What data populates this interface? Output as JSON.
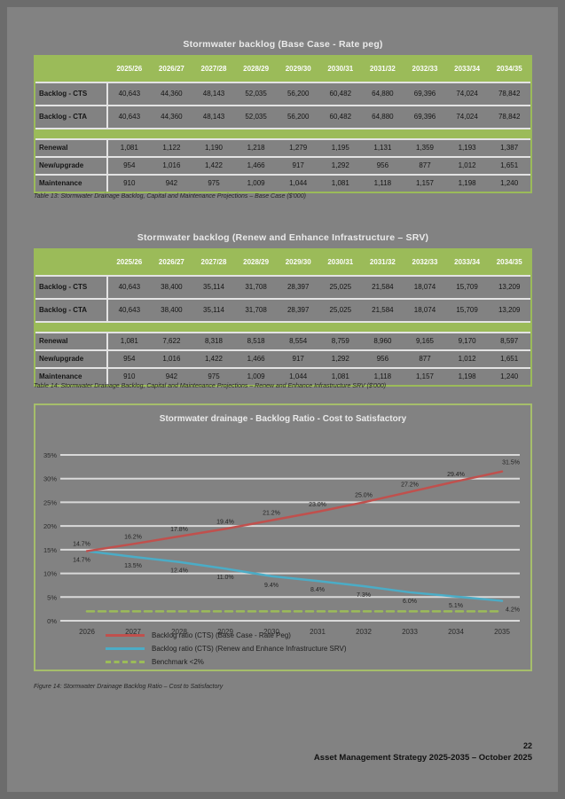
{
  "page": {
    "number": "22",
    "footer_text": "Asset Management Strategy 2025-2035 – October 2025"
  },
  "colors": {
    "accent_green": "#9BBB59",
    "page_background": "#828282",
    "base_case_line": "#C0504D",
    "srv_line": "#4BACC6",
    "benchmark_line": "#9BBB59",
    "gridline": "#D9D9D9"
  },
  "years": [
    "2025/26",
    "2026/27",
    "2027/28",
    "2028/29",
    "2029/30",
    "2030/31",
    "2031/32",
    "2032/33",
    "2033/34",
    "2034/35"
  ],
  "table1": {
    "title": "Stormwater backlog (Base Case - Rate peg)",
    "caption": "Table 13: Stormwater Drainage Backlog, Capital and Maintenance Projections – Base Case ($'000)",
    "backlog_rows": [
      {
        "label": "Backlog - CTS",
        "values": [
          "40,643",
          "44,360",
          "48,143",
          "52,035",
          "56,200",
          "60,482",
          "64,880",
          "69,396",
          "74,024",
          "78,842"
        ]
      },
      {
        "label": "Backlog - CTA",
        "values": [
          "40,643",
          "44,360",
          "48,143",
          "52,035",
          "56,200",
          "60,482",
          "64,880",
          "69,396",
          "74,024",
          "78,842"
        ]
      }
    ],
    "capex_rows": [
      {
        "label": "Renewal",
        "values": [
          "1,081",
          "1,122",
          "1,190",
          "1,218",
          "1,279",
          "1,195",
          "1,131",
          "1,359",
          "1,193",
          "1,387"
        ]
      },
      {
        "label": "New/upgrade",
        "values": [
          "954",
          "1,016",
          "1,422",
          "1,466",
          "917",
          "1,292",
          "956",
          "877",
          "1,012",
          "1,651"
        ]
      },
      {
        "label": "Maintenance",
        "values": [
          "910",
          "942",
          "975",
          "1,009",
          "1,044",
          "1,081",
          "1,118",
          "1,157",
          "1,198",
          "1,240"
        ]
      }
    ]
  },
  "table2": {
    "title": "Stormwater backlog (Renew and Enhance Infrastructure – SRV)",
    "caption": "Table 14: Stormwater Drainage Backlog, Capital and Maintenance Projections – Renew and Enhance Infrastructure SRV ($'000)",
    "backlog_rows": [
      {
        "label": "Backlog - CTS",
        "values": [
          "40,643",
          "38,400",
          "35,114",
          "31,708",
          "28,397",
          "25,025",
          "21,584",
          "18,074",
          "15,709",
          "13,209"
        ]
      },
      {
        "label": "Backlog - CTA",
        "values": [
          "40,643",
          "38,400",
          "35,114",
          "31,708",
          "28,397",
          "25,025",
          "21,584",
          "18,074",
          "15,709",
          "13,209"
        ]
      }
    ],
    "capex_rows": [
      {
        "label": "Renewal",
        "values": [
          "1,081",
          "7,622",
          "8,318",
          "8,518",
          "8,554",
          "8,759",
          "8,960",
          "9,165",
          "9,170",
          "8,597"
        ]
      },
      {
        "label": "New/upgrade",
        "values": [
          "954",
          "1,016",
          "1,422",
          "1,466",
          "917",
          "1,292",
          "956",
          "877",
          "1,012",
          "1,651"
        ]
      },
      {
        "label": "Maintenance",
        "values": [
          "910",
          "942",
          "975",
          "1,009",
          "1,044",
          "1,081",
          "1,118",
          "1,157",
          "1,198",
          "1,240"
        ]
      }
    ]
  },
  "chart_data": {
    "type": "line",
    "title": "Stormwater drainage - Backlog Ratio - Cost to Satisfactory",
    "x": [
      2026,
      2027,
      2028,
      2029,
      2030,
      2031,
      2032,
      2033,
      2034,
      2035
    ],
    "series": [
      {
        "name": "Backlog ratio (CTS) (Base Case - Rate Peg)",
        "color": "#C0504D",
        "dashed": false,
        "show_labels": true,
        "label_side": "above",
        "values": [
          14.7,
          16.2,
          17.8,
          19.4,
          21.2,
          23.0,
          25.0,
          27.2,
          29.4,
          31.5
        ]
      },
      {
        "name": "Backlog ratio (CTS) (Renew and Enhance Infrastructure SRV)",
        "color": "#4BACC6",
        "dashed": false,
        "show_labels": true,
        "label_side": "below",
        "values": [
          14.7,
          13.5,
          12.4,
          11.0,
          9.4,
          8.4,
          7.3,
          6.0,
          5.1,
          4.2
        ]
      },
      {
        "name": "Benchmark <2%",
        "color": "#9BBB59",
        "dashed": true,
        "show_labels": false,
        "label_side": "none",
        "values": [
          2,
          2,
          2,
          2,
          2,
          2,
          2,
          2,
          2,
          2
        ]
      }
    ],
    "ylabel": "",
    "xlabel": "",
    "ylim": [
      0,
      35
    ],
    "ytick_step": 5,
    "ytick_suffix": "%",
    "grid": "horizontal",
    "legend_position": "bottom"
  },
  "figure_caption": "Figure 14: Stormwater Drainage Backlog Ratio – Cost to Satisfactory"
}
